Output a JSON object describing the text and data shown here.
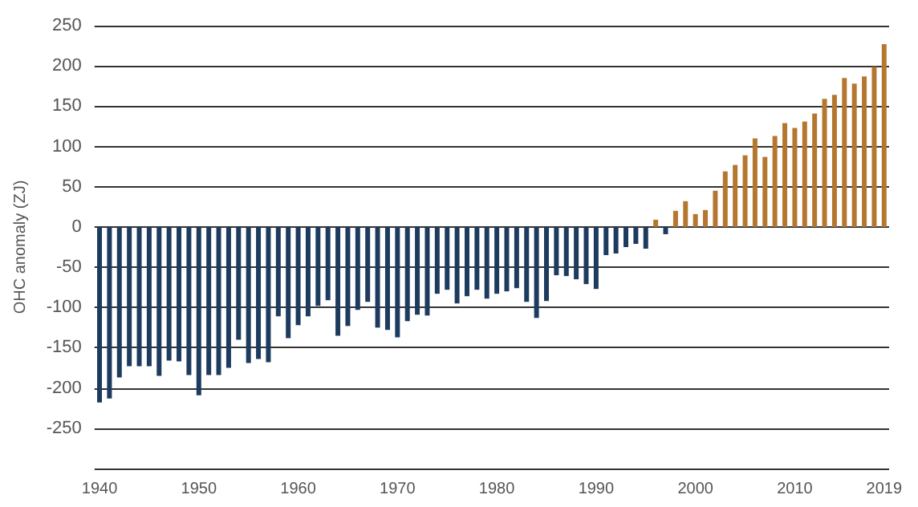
{
  "chart_data": {
    "type": "bar",
    "ylabel": "OHC anomaly (ZJ)",
    "categories": [
      "1940",
      null,
      null,
      null,
      null,
      null,
      null,
      null,
      null,
      null,
      "1950",
      null,
      null,
      null,
      null,
      null,
      null,
      null,
      null,
      null,
      "1960",
      null,
      null,
      null,
      null,
      null,
      null,
      null,
      null,
      null,
      "1970",
      null,
      null,
      null,
      null,
      null,
      null,
      null,
      null,
      null,
      "1980",
      null,
      null,
      null,
      null,
      null,
      null,
      null,
      null,
      null,
      "1990",
      null,
      null,
      null,
      null,
      null,
      null,
      null,
      null,
      null,
      "2000",
      null,
      null,
      null,
      null,
      null,
      null,
      null,
      null,
      null,
      "2010",
      null,
      null,
      null,
      null,
      null,
      null,
      null,
      null,
      "2019"
    ],
    "values": [
      -218,
      -213,
      -187,
      -173,
      -173,
      -173,
      -185,
      -166,
      -167,
      -184,
      -209,
      -184,
      -184,
      -175,
      -140,
      -169,
      -164,
      -168,
      -111,
      -138,
      -122,
      -111,
      -98,
      -91,
      -135,
      -123,
      -103,
      -93,
      -125,
      -128,
      -137,
      -117,
      -109,
      -110,
      -83,
      -78,
      -95,
      -86,
      -78,
      -89,
      -83,
      -80,
      -76,
      -93,
      -113,
      -92,
      -60,
      -61,
      -65,
      -71,
      -77,
      -35,
      -33,
      -25,
      -21,
      -27,
      9,
      -9,
      20,
      32,
      16,
      21,
      45,
      69,
      77,
      89,
      110,
      87,
      113,
      129,
      123,
      131,
      141,
      159,
      164,
      185,
      178,
      187,
      199,
      227
    ],
    "colors": [
      "#1d3b5e",
      "#1d3b5e",
      "#1d3b5e",
      "#1d3b5e",
      "#1d3b5e",
      "#1d3b5e",
      "#1d3b5e",
      "#1d3b5e",
      "#1d3b5e",
      "#1d3b5e",
      "#1d3b5e",
      "#1d3b5e",
      "#1d3b5e",
      "#1d3b5e",
      "#1d3b5e",
      "#1d3b5e",
      "#1d3b5e",
      "#1d3b5e",
      "#1d3b5e",
      "#1d3b5e",
      "#1d3b5e",
      "#1d3b5e",
      "#1d3b5e",
      "#1d3b5e",
      "#1d3b5e",
      "#1d3b5e",
      "#1d3b5e",
      "#1d3b5e",
      "#1d3b5e",
      "#1d3b5e",
      "#1d3b5e",
      "#1d3b5e",
      "#1d3b5e",
      "#1d3b5e",
      "#1d3b5e",
      "#1d3b5e",
      "#1d3b5e",
      "#1d3b5e",
      "#1d3b5e",
      "#1d3b5e",
      "#1d3b5e",
      "#1d3b5e",
      "#1d3b5e",
      "#1d3b5e",
      "#1d3b5e",
      "#1d3b5e",
      "#1d3b5e",
      "#1d3b5e",
      "#1d3b5e",
      "#1d3b5e",
      "#1d3b5e",
      "#1d3b5e",
      "#1d3b5e",
      "#1d3b5e",
      "#1d3b5e",
      "#1d3b5e",
      "#b5772f",
      "#1d3b5e",
      "#b5772f",
      "#b5772f",
      "#b5772f",
      "#b5772f",
      "#b5772f",
      "#b5772f",
      "#b5772f",
      "#b5772f",
      "#b5772f",
      "#b5772f",
      "#b5772f",
      "#b5772f",
      "#b5772f",
      "#b5772f",
      "#b5772f",
      "#b5772f",
      "#b5772f",
      "#b5772f",
      "#b5772f",
      "#b5772f",
      "#b5772f",
      "#b5772f"
    ],
    "ylim": [
      -300,
      250
    ],
    "yticks": [
      {
        "value": -300,
        "label": null
      },
      -250,
      -200,
      -150,
      -100,
      -50,
      0,
      50,
      100,
      150,
      200,
      250
    ],
    "grid": "y"
  }
}
